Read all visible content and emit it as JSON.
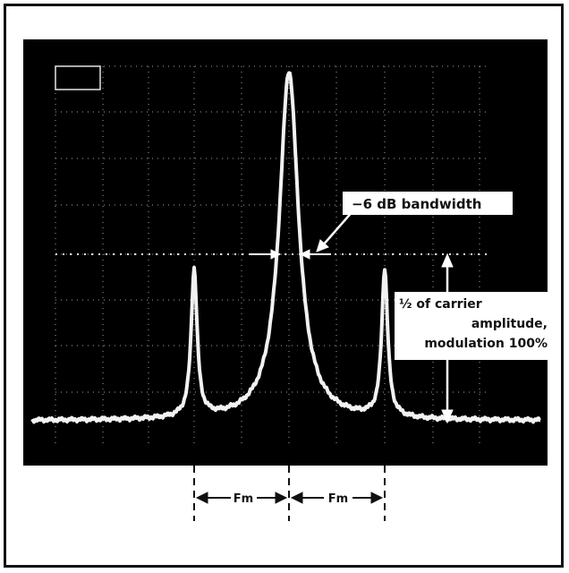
{
  "figure": {
    "labels": {
      "bandwidth": "−6 dB bandwidth",
      "half_amplitude_line1": "½ of carrier",
      "half_amplitude_line2": "amplitude,",
      "half_amplitude_line3": "modulation 100%",
      "fm_left": "Fm",
      "fm_right": "Fm"
    },
    "colors": {
      "screen": "#000000",
      "trace": "#f2f2f2",
      "graticule": "#cfcfcf",
      "frame": "#111111"
    }
  }
}
